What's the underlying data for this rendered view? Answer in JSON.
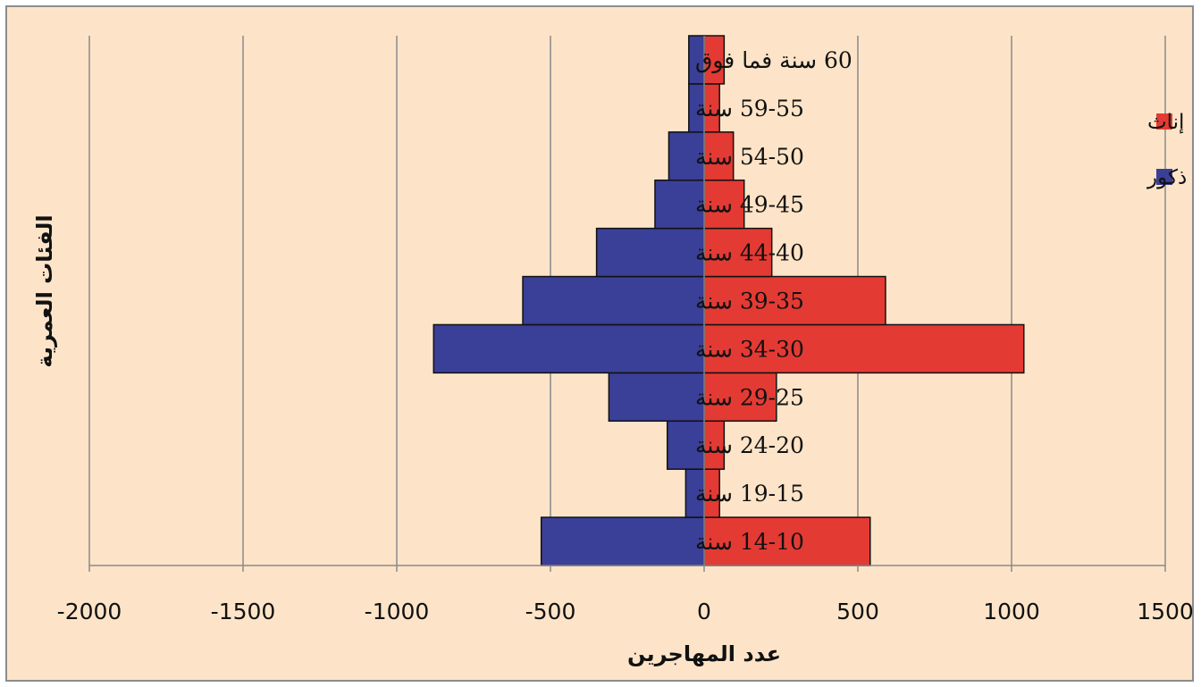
{
  "chart_data": {
    "type": "bar",
    "orientation": "horizontal",
    "stacked": false,
    "title": "",
    "xlabel": "عدد المهاجرين",
    "ylabel": "الفئات العمرية",
    "xlim": [
      -2000,
      1500
    ],
    "x_ticks": [
      "-2000",
      "-1500",
      "-1000",
      "-500",
      "0",
      "500",
      "1000",
      "1500"
    ],
    "x_tick_values": [
      -2000,
      -1500,
      -1000,
      -500,
      0,
      500,
      1000,
      1500
    ],
    "grid": true,
    "legend_position": "right",
    "categories": [
      "14-10 سنة",
      "19-15 سنة",
      "24-20 سنة",
      "29-25 سنة",
      "34-30 سنة",
      "39-35 سنة",
      "44-40 سنة",
      "49-45 سنة",
      "54-50 سنة",
      "59-55 سنة",
      "60 سنة فما فوق"
    ],
    "series": [
      {
        "name": "ذكور",
        "color": "#3a3f97",
        "values": [
          -530,
          -60,
          -120,
          -310,
          -880,
          -590,
          -350,
          -160,
          -115,
          -50,
          -50
        ]
      },
      {
        "name": "إناث",
        "color": "#e43a34",
        "values": [
          540,
          50,
          65,
          235,
          1040,
          590,
          220,
          130,
          95,
          50,
          65
        ]
      }
    ]
  }
}
